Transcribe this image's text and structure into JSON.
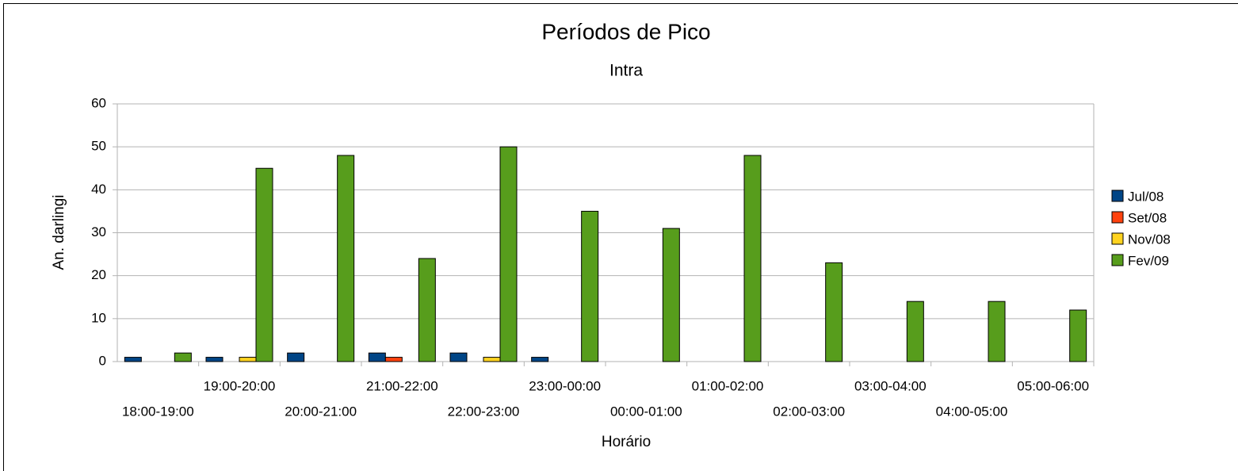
{
  "chart_data": {
    "type": "bar",
    "title": "Períodos de Pico",
    "subtitle": "Intra",
    "x_label": "Horário",
    "y_label": "An. darlingi",
    "categories": [
      "18:00-19:00",
      "19:00-20:00",
      "20:00-21:00",
      "21:00-22:00",
      "22:00-23:00",
      "23:00-00:00",
      "00:00-01:00",
      "01:00-02:00",
      "02:00-03:00",
      "03:00-04:00",
      "04:00-05:00",
      "05:00-06:00"
    ],
    "series": [
      {
        "name": "Jul/08",
        "color": "#004586",
        "values": [
          1,
          1,
          2,
          2,
          2,
          1,
          0,
          0,
          0,
          0,
          0,
          0
        ]
      },
      {
        "name": "Set/08",
        "color": "#ff420e",
        "values": [
          0,
          0,
          0,
          1,
          0,
          0,
          0,
          0,
          0,
          0,
          0,
          0
        ]
      },
      {
        "name": "Nov/08",
        "color": "#ffd320",
        "values": [
          0,
          1,
          0,
          0,
          1,
          0,
          0,
          0,
          0,
          0,
          0,
          0
        ]
      },
      {
        "name": "Fev/09",
        "color": "#579d1c",
        "values": [
          2,
          45,
          48,
          24,
          50,
          35,
          31,
          48,
          23,
          14,
          14,
          12
        ]
      }
    ],
    "ylim": [
      0,
      60
    ],
    "yticks": [
      0,
      10,
      20,
      30,
      40,
      50,
      60
    ],
    "grid": true,
    "legend": "right"
  }
}
